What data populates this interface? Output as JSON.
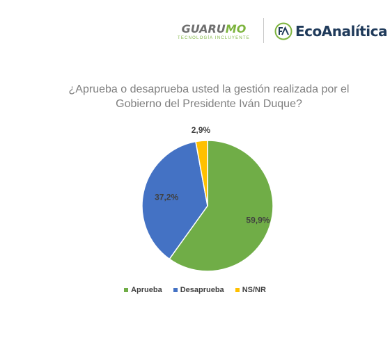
{
  "header": {
    "guarumo_name_part1": "GUARU",
    "guarumo_name_part2": "MO",
    "guarumo_tagline": "TECNOLOGÍA INCLUYENTE",
    "eco_name": "EcoAnalítica",
    "colors": {
      "guarumo_gray": "#6e6e6e",
      "guarumo_green": "#7db43e",
      "eco_navy": "#1f3a5a"
    }
  },
  "chart_data": {
    "type": "pie",
    "title_lines": [
      "¿Aprueba o desaprueba usted la gestión realizada por el",
      "Gobierno del Presidente Iván Duque?"
    ],
    "slices": [
      {
        "label": "Aprueba",
        "value": 59.9,
        "display": "59,9%",
        "color": "#70ad47"
      },
      {
        "label": "Desaprueba",
        "value": 37.2,
        "display": "37,2%",
        "color": "#4472c4"
      },
      {
        "label": "NS/NR",
        "value": 2.9,
        "display": "2,9%",
        "color": "#ffc000"
      }
    ],
    "start": "12 o'clock",
    "direction": "clockwise",
    "legend_position": "bottom"
  }
}
